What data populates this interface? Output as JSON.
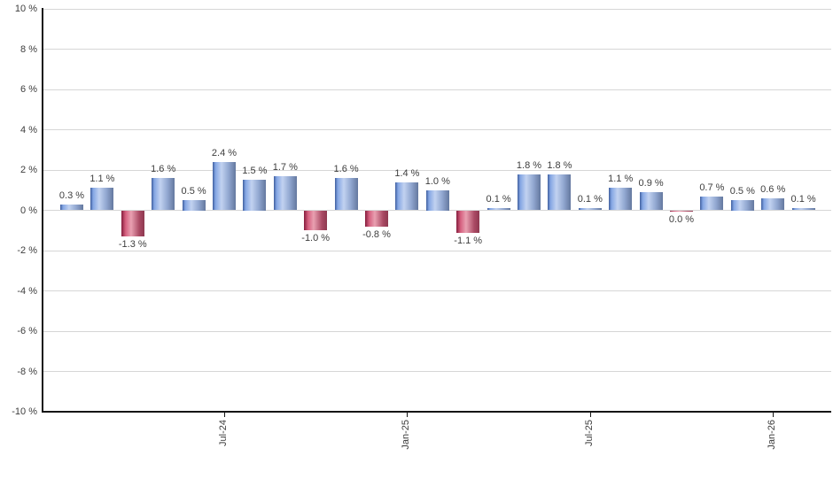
{
  "chart_data": {
    "type": "bar",
    "title": "",
    "xlabel": "",
    "ylabel": "",
    "ylim": [
      -10,
      10
    ],
    "ytick_step": 2,
    "grid": true,
    "legend": "none",
    "yticks": [
      "10 %",
      "8 %",
      "6 %",
      "4 %",
      "2 %",
      "0 %",
      "-2 %",
      "-4 %",
      "-6 %",
      "-8 %",
      "-10 %"
    ],
    "xticks": [
      {
        "index": 5,
        "label": "Jul-24"
      },
      {
        "index": 11,
        "label": "Jan-25"
      },
      {
        "index": 17,
        "label": "Jul-25"
      },
      {
        "index": 23,
        "label": "Jan-26"
      }
    ],
    "points": [
      {
        "value": 0.3,
        "label": "0.3 %",
        "neg": false
      },
      {
        "value": 1.1,
        "label": "1.1 %",
        "neg": false
      },
      {
        "value": -1.3,
        "label": "-1.3 %",
        "neg": true
      },
      {
        "value": 1.6,
        "label": "1.6 %",
        "neg": false
      },
      {
        "value": 0.5,
        "label": "0.5 %",
        "neg": false
      },
      {
        "value": 2.4,
        "label": "2.4 %",
        "neg": false
      },
      {
        "value": 1.5,
        "label": "1.5 %",
        "neg": false
      },
      {
        "value": 1.7,
        "label": "1.7 %",
        "neg": false
      },
      {
        "value": -1.0,
        "label": "-1.0 %",
        "neg": true
      },
      {
        "value": 1.6,
        "label": "1.6 %",
        "neg": false
      },
      {
        "value": -0.8,
        "label": "-0.8 %",
        "neg": true
      },
      {
        "value": 1.4,
        "label": "1.4 %",
        "neg": false
      },
      {
        "value": 1.0,
        "label": "1.0 %",
        "neg": false
      },
      {
        "value": -1.1,
        "label": "-1.1 %",
        "neg": true
      },
      {
        "value": 0.1,
        "label": "0.1 %",
        "neg": false
      },
      {
        "value": 1.8,
        "label": "1.8 %",
        "neg": false
      },
      {
        "value": 1.8,
        "label": "1.8 %",
        "neg": false
      },
      {
        "value": 0.1,
        "label": "0.1 %",
        "neg": false
      },
      {
        "value": 1.1,
        "label": "1.1 %",
        "neg": false
      },
      {
        "value": 0.9,
        "label": "0.9 %",
        "neg": false
      },
      {
        "value": 0.0,
        "label": "0.0 %",
        "neg": true
      },
      {
        "value": 0.7,
        "label": "0.7 %",
        "neg": false
      },
      {
        "value": 0.5,
        "label": "0.5 %",
        "neg": false
      },
      {
        "value": 0.6,
        "label": "0.6 %",
        "neg": false
      },
      {
        "value": 0.1,
        "label": "0.1 %",
        "neg": false
      }
    ],
    "colors": {
      "positive_bar": "#84a6e4",
      "negative_bar": "#c14b68",
      "gridline": "#d6d6d6",
      "axis": "#151515",
      "label_text": "#3d3d3d",
      "background": "#ffffff"
    }
  }
}
